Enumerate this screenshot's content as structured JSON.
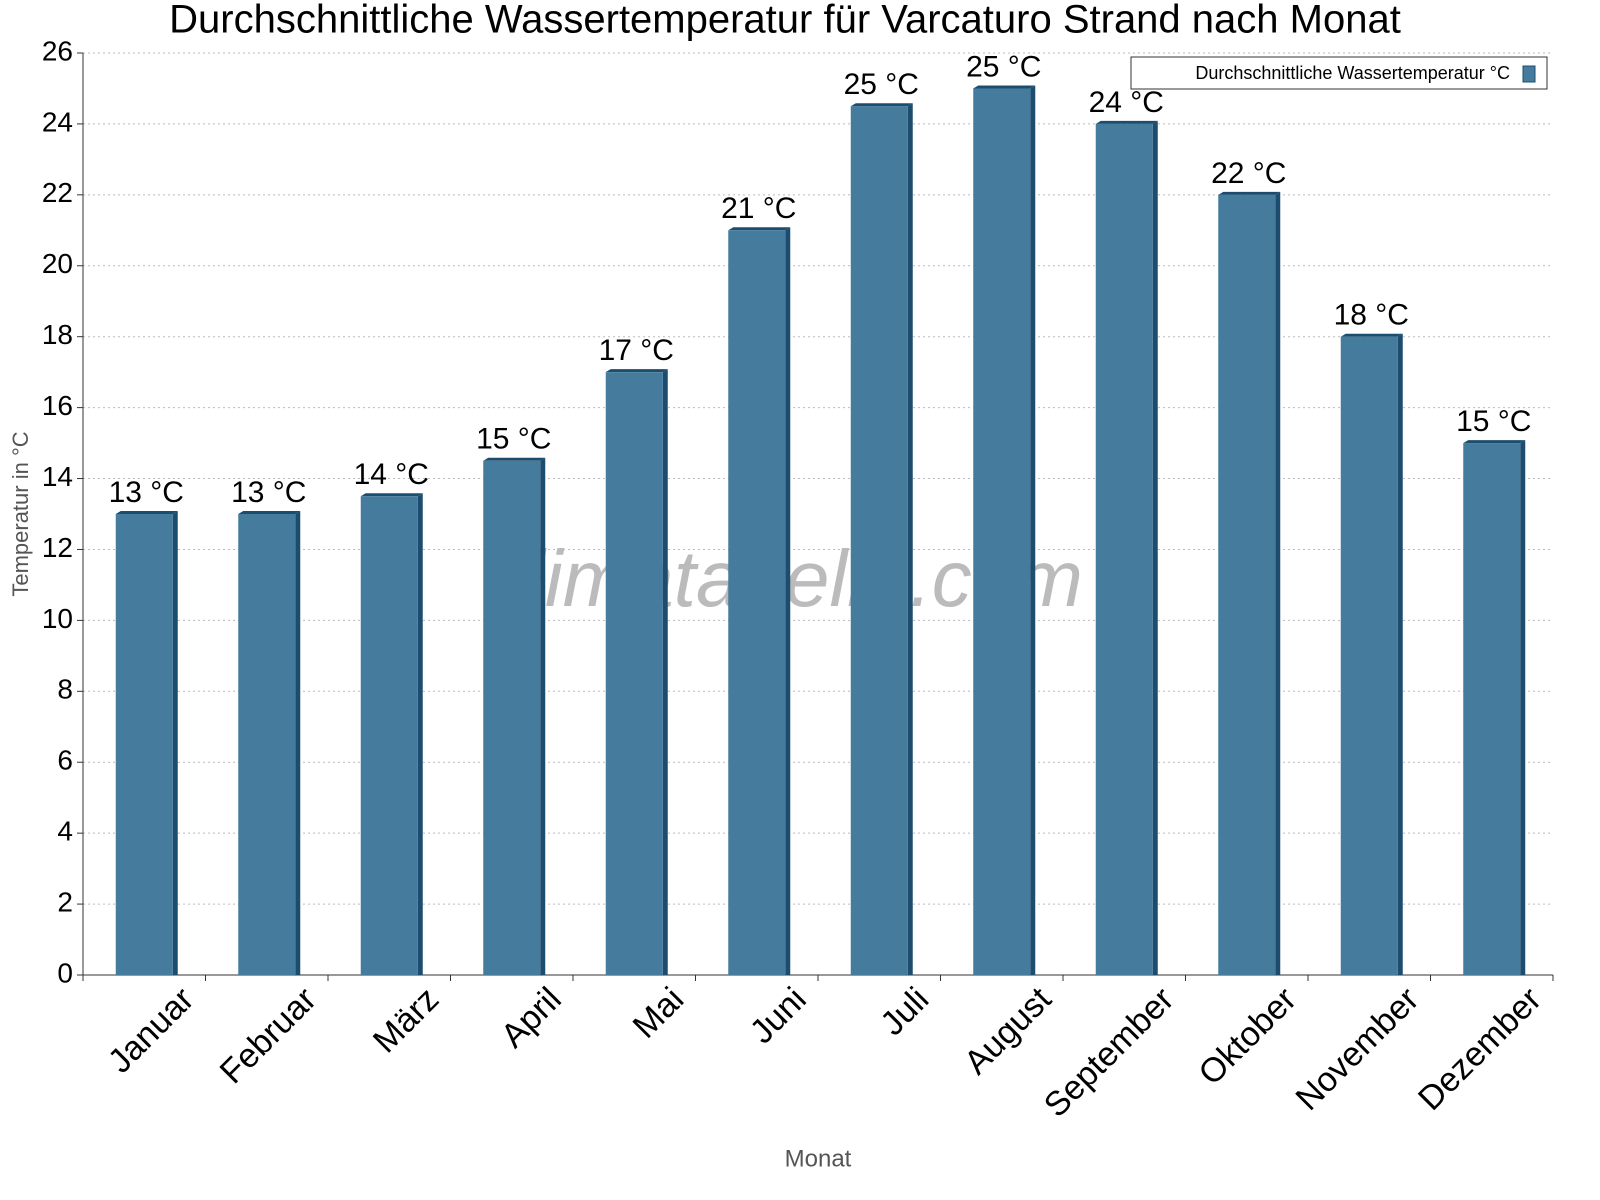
{
  "chart_data": {
    "type": "bar",
    "title": "Durchschnittliche Wassertemperatur für Varcaturo Strand nach Monat",
    "x_label": "Monat",
    "y_label": "Temperatur in °C",
    "watermark": "klimatabelle.com",
    "categories": [
      "Januar",
      "Februar",
      "März",
      "April",
      "Mai",
      "Juni",
      "Juli",
      "August",
      "September",
      "Oktober",
      "November",
      "Dezember"
    ],
    "series": [
      {
        "name": "Durchschnittliche Wassertemperatur °C",
        "color": "#457b9d",
        "values": [
          13,
          13,
          13.5,
          14.5,
          17,
          21,
          24.5,
          25,
          24,
          22,
          18,
          15
        ],
        "value_labels": [
          "13 °C",
          "13 °C",
          "14 °C",
          "15 °C",
          "17 °C",
          "21 °C",
          "25 °C",
          "25 °C",
          "24 °C",
          "22 °C",
          "18 °C",
          "15 °C"
        ]
      }
    ],
    "ylim": [
      0,
      26
    ],
    "yticks": [
      0,
      2,
      4,
      6,
      8,
      10,
      12,
      14,
      16,
      18,
      20,
      22,
      24,
      26
    ],
    "grid": true,
    "legend": "upper right"
  }
}
